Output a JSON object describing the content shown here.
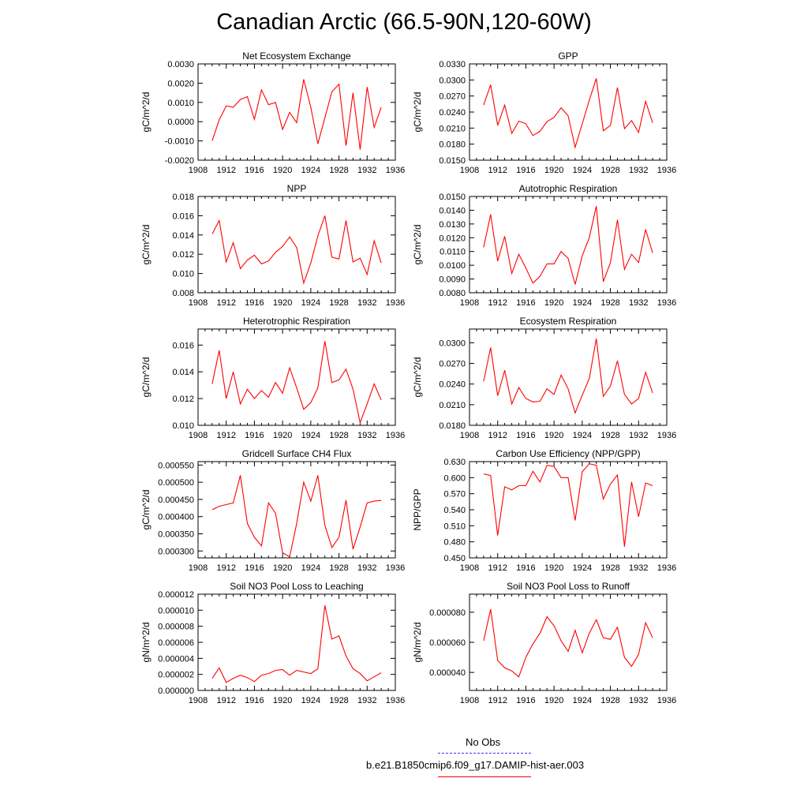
{
  "page": {
    "title": "Canadian Arctic (66.5-90N,120-60W)"
  },
  "legend": {
    "entries": [
      {
        "label": "No Obs",
        "color": "#3333ff",
        "style": "dashed"
      },
      {
        "label": "b.e21.B1850cmip6.f09_g17.DAMIP-hist-aer.003",
        "color": "#ff0000",
        "style": "solid"
      }
    ]
  },
  "chart_data": [
    {
      "type": "line",
      "title": "Net Ecosystem Exchange",
      "ylabel": "gC/m^2/d",
      "xlim": [
        1908,
        1936
      ],
      "xticks": [
        1908,
        1912,
        1916,
        1920,
        1924,
        1928,
        1932,
        1936
      ],
      "ylim": [
        -0.002,
        0.003
      ],
      "yticks": [
        "-0.0020",
        "-0.0010",
        "0.0000",
        "0.0010",
        "0.0020",
        "0.0030"
      ],
      "series": [
        {
          "color": "#ff0000",
          "x": [
            1910,
            1911,
            1912,
            1913,
            1914,
            1915,
            1916,
            1917,
            1918,
            1919,
            1920,
            1921,
            1922,
            1923,
            1924,
            1925,
            1926,
            1927,
            1928,
            1929,
            1930,
            1931,
            1932,
            1933,
            1934
          ],
          "y": [
            -0.001,
            0.0001,
            0.00082,
            0.00075,
            0.00115,
            0.0013,
            0.00012,
            0.00165,
            0.00088,
            0.001,
            -0.0004,
            0.00048,
            -5e-05,
            0.0022,
            0.00075,
            -0.00115,
            0.0002,
            0.00155,
            0.00195,
            -0.00125,
            0.0015,
            -0.00145,
            0.0018,
            -0.0003,
            0.00075
          ]
        }
      ]
    },
    {
      "type": "line",
      "title": "GPP",
      "ylabel": "gC/m^2/d",
      "xlim": [
        1908,
        1936
      ],
      "xticks": [
        1908,
        1912,
        1916,
        1920,
        1924,
        1928,
        1932,
        1936
      ],
      "ylim": [
        0.015,
        0.033
      ],
      "yticks": [
        "0.0150",
        "0.0180",
        "0.0210",
        "0.0240",
        "0.0270",
        "0.0300",
        "0.0330"
      ],
      "series": [
        {
          "color": "#ff0000",
          "x": [
            1910,
            1911,
            1912,
            1913,
            1914,
            1915,
            1916,
            1917,
            1918,
            1919,
            1920,
            1921,
            1922,
            1923,
            1924,
            1925,
            1926,
            1927,
            1928,
            1929,
            1930,
            1931,
            1932,
            1933,
            1934
          ],
          "y": [
            0.0253,
            0.0291,
            0.0215,
            0.0253,
            0.02,
            0.0223,
            0.0218,
            0.0196,
            0.0204,
            0.0222,
            0.023,
            0.0248,
            0.0233,
            0.0174,
            0.0218,
            0.0262,
            0.0303,
            0.0205,
            0.0215,
            0.0286,
            0.0209,
            0.0224,
            0.0202,
            0.026,
            0.022
          ]
        }
      ]
    },
    {
      "type": "line",
      "title": "NPP",
      "ylabel": "gC/m^2/d",
      "xlim": [
        1908,
        1936
      ],
      "xticks": [
        1908,
        1912,
        1916,
        1920,
        1924,
        1928,
        1932,
        1936
      ],
      "ylim": [
        0.008,
        0.018
      ],
      "yticks": [
        "0.008",
        "0.010",
        "0.012",
        "0.014",
        "0.016",
        "0.018"
      ],
      "series": [
        {
          "color": "#ff0000",
          "x": [
            1910,
            1911,
            1912,
            1913,
            1914,
            1915,
            1916,
            1917,
            1918,
            1919,
            1920,
            1921,
            1922,
            1923,
            1924,
            1925,
            1926,
            1927,
            1928,
            1929,
            1930,
            1931,
            1932,
            1933,
            1934
          ],
          "y": [
            0.0141,
            0.0155,
            0.0112,
            0.0132,
            0.0105,
            0.0114,
            0.0119,
            0.011,
            0.0113,
            0.0122,
            0.0128,
            0.0138,
            0.0127,
            0.009,
            0.0111,
            0.0139,
            0.016,
            0.0117,
            0.0115,
            0.0155,
            0.0112,
            0.0116,
            0.0099,
            0.0134,
            0.0111
          ]
        }
      ]
    },
    {
      "type": "line",
      "title": "Autotrophic Respiration",
      "ylabel": "gC/m^2/d",
      "xlim": [
        1908,
        1936
      ],
      "xticks": [
        1908,
        1912,
        1916,
        1920,
        1924,
        1928,
        1932,
        1936
      ],
      "ylim": [
        0.008,
        0.015
      ],
      "yticks": [
        "0.0080",
        "0.0090",
        "0.0100",
        "0.0110",
        "0.0120",
        "0.0130",
        "0.0140",
        "0.0150"
      ],
      "series": [
        {
          "color": "#ff0000",
          "x": [
            1910,
            1911,
            1912,
            1913,
            1914,
            1915,
            1916,
            1917,
            1918,
            1919,
            1920,
            1921,
            1922,
            1923,
            1924,
            1925,
            1926,
            1927,
            1928,
            1929,
            1930,
            1931,
            1932,
            1933,
            1934
          ],
          "y": [
            0.0113,
            0.0137,
            0.0103,
            0.0121,
            0.0094,
            0.0108,
            0.0098,
            0.0087,
            0.0092,
            0.0101,
            0.0101,
            0.011,
            0.0105,
            0.0086,
            0.0107,
            0.012,
            0.0143,
            0.0088,
            0.0102,
            0.0133,
            0.0097,
            0.0108,
            0.0102,
            0.0126,
            0.0109
          ]
        }
      ]
    },
    {
      "type": "line",
      "title": "Heterotrophic Respiration",
      "ylabel": "gC/m^2/d",
      "xlim": [
        1908,
        1936
      ],
      "xticks": [
        1908,
        1912,
        1916,
        1920,
        1924,
        1928,
        1932,
        1936
      ],
      "ylim": [
        0.01,
        0.0172
      ],
      "yticks": [
        "0.010",
        "0.012",
        "0.014",
        "0.016"
      ],
      "series": [
        {
          "color": "#ff0000",
          "x": [
            1910,
            1911,
            1912,
            1913,
            1914,
            1915,
            1916,
            1917,
            1918,
            1919,
            1920,
            1921,
            1922,
            1923,
            1924,
            1925,
            1926,
            1927,
            1928,
            1929,
            1930,
            1931,
            1932,
            1933,
            1934
          ],
          "y": [
            0.0131,
            0.0156,
            0.012,
            0.014,
            0.0116,
            0.0127,
            0.012,
            0.0126,
            0.0121,
            0.0132,
            0.0124,
            0.0143,
            0.0128,
            0.0112,
            0.0117,
            0.0128,
            0.0163,
            0.0132,
            0.0134,
            0.0142,
            0.0127,
            0.0102,
            0.0116,
            0.0131,
            0.0119
          ]
        }
      ]
    },
    {
      "type": "line",
      "title": "Ecosystem Respiration",
      "ylabel": "gC/m^2/d",
      "xlim": [
        1908,
        1936
      ],
      "xticks": [
        1908,
        1912,
        1916,
        1920,
        1924,
        1928,
        1932,
        1936
      ],
      "ylim": [
        0.018,
        0.032
      ],
      "yticks": [
        "0.0180",
        "0.0210",
        "0.0240",
        "0.0270",
        "0.0300"
      ],
      "series": [
        {
          "color": "#ff0000",
          "x": [
            1910,
            1911,
            1912,
            1913,
            1914,
            1915,
            1916,
            1917,
            1918,
            1919,
            1920,
            1921,
            1922,
            1923,
            1924,
            1925,
            1926,
            1927,
            1928,
            1929,
            1930,
            1931,
            1932,
            1933,
            1934
          ],
          "y": [
            0.0244,
            0.0293,
            0.0223,
            0.026,
            0.0211,
            0.0235,
            0.0219,
            0.0214,
            0.0215,
            0.0233,
            0.0225,
            0.0253,
            0.0233,
            0.0198,
            0.0224,
            0.0248,
            0.0306,
            0.0222,
            0.0237,
            0.0274,
            0.0225,
            0.0211,
            0.0219,
            0.0257,
            0.0227
          ]
        }
      ]
    },
    {
      "type": "line",
      "title": "Gridcell Surface CH4 Flux",
      "ylabel": "gC/m^2/d",
      "xlim": [
        1908,
        1936
      ],
      "xticks": [
        1908,
        1912,
        1916,
        1920,
        1924,
        1928,
        1932,
        1936
      ],
      "ylim": [
        0.00028,
        0.00056
      ],
      "yticks": [
        "0.000300",
        "0.000350",
        "0.000400",
        "0.000450",
        "0.000500",
        "0.000550"
      ],
      "series": [
        {
          "color": "#ff0000",
          "x": [
            1910,
            1911,
            1912,
            1913,
            1914,
            1915,
            1916,
            1917,
            1918,
            1919,
            1920,
            1921,
            1922,
            1923,
            1924,
            1925,
            1926,
            1927,
            1928,
            1929,
            1930,
            1931,
            1932,
            1933,
            1934
          ],
          "y": [
            0.00042,
            0.00043,
            0.000435,
            0.00044,
            0.00052,
            0.00038,
            0.00034,
            0.000315,
            0.00044,
            0.00041,
            0.000295,
            0.000283,
            0.00038,
            0.0005,
            0.000445,
            0.00052,
            0.000375,
            0.00031,
            0.00034,
            0.000448,
            0.000305,
            0.00037,
            0.00044,
            0.000445,
            0.000447
          ]
        }
      ]
    },
    {
      "type": "line",
      "title": "Carbon Use Efficiency (NPP/GPP)",
      "ylabel": "NPP/GPP",
      "xlim": [
        1908,
        1936
      ],
      "xticks": [
        1908,
        1912,
        1916,
        1920,
        1924,
        1928,
        1932,
        1936
      ],
      "ylim": [
        0.45,
        0.63
      ],
      "yticks": [
        "0.450",
        "0.480",
        "0.510",
        "0.540",
        "0.570",
        "0.600",
        "0.630"
      ],
      "series": [
        {
          "color": "#ff0000",
          "x": [
            1910,
            1911,
            1912,
            1913,
            1914,
            1915,
            1916,
            1917,
            1918,
            1919,
            1920,
            1921,
            1922,
            1923,
            1924,
            1925,
            1926,
            1927,
            1928,
            1929,
            1930,
            1931,
            1932,
            1933,
            1934
          ],
          "y": [
            0.607,
            0.604,
            0.492,
            0.583,
            0.577,
            0.585,
            0.585,
            0.612,
            0.592,
            0.623,
            0.621,
            0.6,
            0.6,
            0.52,
            0.611,
            0.626,
            0.623,
            0.56,
            0.588,
            0.605,
            0.471,
            0.592,
            0.527,
            0.59,
            0.585
          ]
        }
      ]
    },
    {
      "type": "line",
      "title": "Soil NO3 Pool Loss to Leaching",
      "ylabel": "gN/m^2/d",
      "xlim": [
        1908,
        1936
      ],
      "xticks": [
        1908,
        1912,
        1916,
        1920,
        1924,
        1928,
        1932,
        1936
      ],
      "ylim": [
        0,
        1.2e-05
      ],
      "yticks": [
        "0.000000",
        "0.000002",
        "0.000004",
        "0.000006",
        "0.000008",
        "0.000010",
        "0.000012"
      ],
      "series": [
        {
          "color": "#ff0000",
          "x": [
            1910,
            1911,
            1912,
            1913,
            1914,
            1915,
            1916,
            1917,
            1918,
            1919,
            1920,
            1921,
            1922,
            1923,
            1924,
            1925,
            1926,
            1927,
            1928,
            1929,
            1930,
            1931,
            1932,
            1933,
            1934
          ],
          "y": [
            1.5e-06,
            2.8e-06,
            1e-06,
            1.5e-06,
            1.9e-06,
            1.6e-06,
            1.1e-06,
            1.9e-06,
            2.1e-06,
            2.5e-06,
            2.6e-06,
            1.9e-06,
            2.5e-06,
            2.3e-06,
            2.1e-06,
            2.7e-06,
            1.06e-05,
            6.4e-06,
            6.8e-06,
            4.3e-06,
            2.7e-06,
            2.1e-06,
            1.2e-06,
            1.7e-06,
            2.2e-06
          ]
        }
      ]
    },
    {
      "type": "line",
      "title": "Soil NO3 Pool Loss to Runoff",
      "ylabel": "gN/m^2/d",
      "xlim": [
        1908,
        1936
      ],
      "xticks": [
        1908,
        1912,
        1916,
        1920,
        1924,
        1928,
        1932,
        1936
      ],
      "ylim": [
        2.8e-05,
        9.2e-05
      ],
      "yticks": [
        "0.000040",
        "0.000060",
        "0.000080"
      ],
      "series": [
        {
          "color": "#ff0000",
          "x": [
            1910,
            1911,
            1912,
            1913,
            1914,
            1915,
            1916,
            1917,
            1918,
            1919,
            1920,
            1921,
            1922,
            1923,
            1924,
            1925,
            1926,
            1927,
            1928,
            1929,
            1930,
            1931,
            1932,
            1933,
            1934
          ],
          "y": [
            6.1e-05,
            8.2e-05,
            4.8e-05,
            4.3e-05,
            4.1e-05,
            3.7e-05,
            5e-05,
            5.9e-05,
            6.6e-05,
            7.7e-05,
            7.1e-05,
            6.1e-05,
            5.4e-05,
            6.8e-05,
            5.3e-05,
            6.6e-05,
            7.5e-05,
            6.3e-05,
            6.2e-05,
            7e-05,
            5e-05,
            4.4e-05,
            5.2e-05,
            7.3e-05,
            6.3e-05
          ]
        }
      ]
    }
  ]
}
